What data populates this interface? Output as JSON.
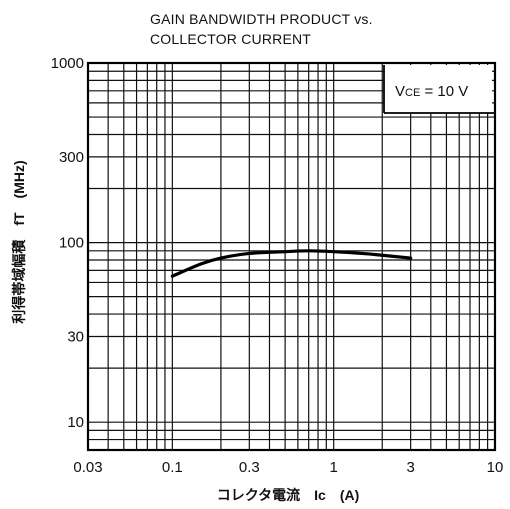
{
  "chart_data": {
    "type": "line",
    "title_line1": "GAIN BANDWIDTH PRODUCT  vs.",
    "title_line2": "COLLECTOR CURRENT",
    "xlabel": "コレクタ電流　Ic　(A)",
    "ylabel": "利得帯域幅積　fT　(MHz)",
    "x_scale": "log",
    "y_scale": "log",
    "xlim": [
      0.03,
      10
    ],
    "ylim": [
      7,
      1000
    ],
    "x_ticks": [
      0.03,
      0.1,
      0.3,
      1,
      3,
      10
    ],
    "x_tick_labels": [
      "0.03",
      "0.1",
      "0.3",
      "1",
      "3",
      "10"
    ],
    "y_ticks": [
      10,
      30,
      100,
      300,
      1000
    ],
    "y_tick_labels": [
      "10",
      "30",
      "100",
      "300",
      "1000"
    ],
    "grid": true,
    "annotation": "VCE = 10 V",
    "annotation_parts": {
      "v": "V",
      "sub": "CE",
      "rest": " = 10 V"
    },
    "legend_position": "top-right",
    "series": [
      {
        "x": [
          0.1,
          0.15,
          0.2,
          0.3,
          0.5,
          0.7,
          1.0,
          1.5,
          2.0,
          3.0
        ],
        "y": [
          65,
          76,
          82,
          87,
          89,
          90,
          89,
          87,
          85,
          82
        ]
      }
    ]
  }
}
